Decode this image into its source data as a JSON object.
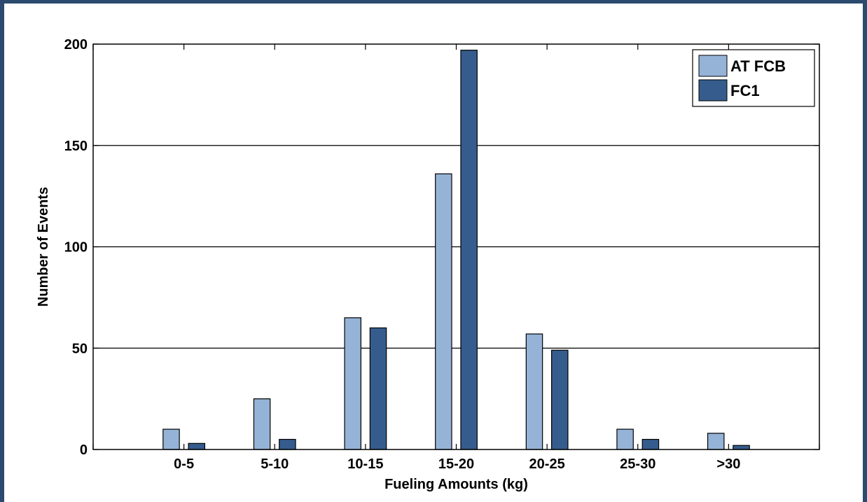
{
  "chart_data": {
    "type": "bar",
    "categories": [
      "0-5",
      "5-10",
      "10-15",
      "15-20",
      "20-25",
      "25-30",
      ">30"
    ],
    "series": [
      {
        "name": "AT FCB",
        "values": [
          10,
          25,
          65,
          136,
          57,
          10,
          8
        ],
        "color": "#95b3d7"
      },
      {
        "name": "FC1",
        "values": [
          3,
          5,
          60,
          197,
          49,
          5,
          2
        ],
        "color": "#355c8d"
      }
    ],
    "xlabel": "Fueling Amounts (kg)",
    "ylabel": "Number of Events",
    "ylim": [
      0,
      200
    ],
    "yticks": [
      0,
      50,
      100,
      150,
      200
    ],
    "grid": "horizontal",
    "legend": "top-right"
  }
}
